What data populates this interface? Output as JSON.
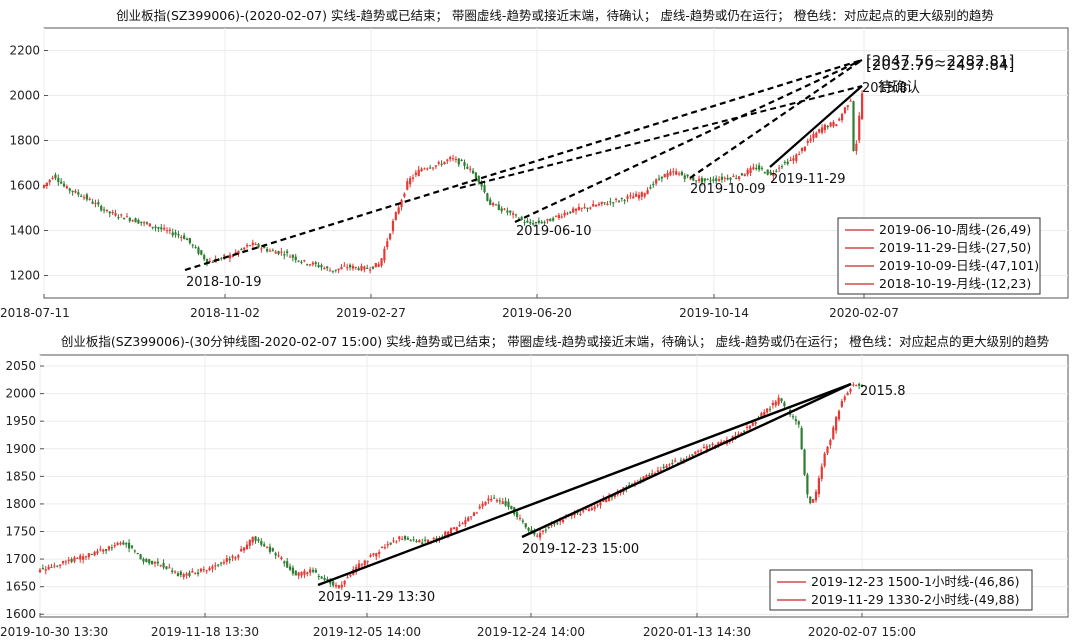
{
  "chart_data": [
    {
      "type": "candlestick",
      "title": "创业板指(SZ399006)-(2020-02-07)  实线-趋势或已结束；  带圈虚线-趋势或接近末端，待确认；  虚线-趋势或仍在运行；  橙色线：对应起点的更大级别的趋势",
      "ylim": [
        1100,
        2300
      ],
      "ytick_values": [
        1200,
        1400,
        1600,
        1800,
        2000,
        2200
      ],
      "ytick_labels": [
        "1200",
        "1400",
        "1600",
        "1800",
        "2000",
        "2200"
      ],
      "xtick_labels": [
        "2018-07-11",
        "2018-11-02",
        "2019-02-27",
        "2019-06-20",
        "2019-10-14",
        "2020-02-07"
      ],
      "price_path": [
        [
          0,
          1590
        ],
        [
          8,
          1620
        ],
        [
          13,
          1650
        ],
        [
          25,
          1590
        ],
        [
          45,
          1550
        ],
        [
          70,
          1480
        ],
        [
          95,
          1450
        ],
        [
          130,
          1400
        ],
        [
          150,
          1370
        ],
        [
          175,
          1260
        ],
        [
          200,
          1290
        ],
        [
          220,
          1340
        ],
        [
          240,
          1310
        ],
        [
          255,
          1300
        ],
        [
          275,
          1260
        ],
        [
          290,
          1245
        ],
        [
          305,
          1220
        ],
        [
          320,
          1240
        ],
        [
          340,
          1230
        ],
        [
          355,
          1250
        ],
        [
          370,
          1450
        ],
        [
          385,
          1620
        ],
        [
          400,
          1680
        ],
        [
          415,
          1690
        ],
        [
          430,
          1720
        ],
        [
          445,
          1690
        ],
        [
          460,
          1620
        ],
        [
          470,
          1520
        ],
        [
          490,
          1480
        ],
        [
          510,
          1430
        ],
        [
          530,
          1440
        ],
        [
          550,
          1480
        ],
        [
          570,
          1500
        ],
        [
          590,
          1520
        ],
        [
          610,
          1540
        ],
        [
          630,
          1560
        ],
        [
          650,
          1640
        ],
        [
          665,
          1660
        ],
        [
          680,
          1630
        ],
        [
          695,
          1620
        ],
        [
          710,
          1630
        ],
        [
          730,
          1640
        ],
        [
          750,
          1680
        ],
        [
          765,
          1650
        ],
        [
          775,
          1690
        ],
        [
          790,
          1720
        ],
        [
          805,
          1800
        ],
        [
          820,
          1860
        ],
        [
          835,
          1880
        ],
        [
          845,
          1960
        ],
        [
          850,
          1990
        ],
        [
          852,
          1760
        ],
        [
          856,
          1800
        ],
        [
          860,
          2010
        ]
      ],
      "trendlines": [
        {
          "from": [
            "2018-10-19",
            1190
          ],
          "to": [
            2150,
            0
          ],
          "style": "dashed",
          "color": "#000000"
        },
        {
          "from": [
            "2019-06-10",
            1410
          ],
          "to": [
            2150,
            0
          ],
          "style": "dashed",
          "color": "#000000"
        },
        {
          "from": [
            "2019-10-09",
            1600
          ],
          "to": [
            2150,
            0
          ],
          "style": "dashed",
          "color": "#000000"
        },
        {
          "from": [
            "2019-11-29",
            1645
          ],
          "to": [
            2032,
            0
          ],
          "style": "solid",
          "color": "#000000"
        }
      ],
      "annotations": [
        {
          "text": "2018-10-19",
          "value": 1190
        },
        {
          "text": "2019-06-10",
          "value": 1410
        },
        {
          "text": "2019-10-09",
          "value": 1600
        },
        {
          "text": "2019-11-29",
          "value": 1645
        },
        {
          "text": "[2047.56~2282.81]",
          "value": 2120
        },
        {
          "text": "[2032.79~2437.84]",
          "value": 2110
        },
        {
          "text": "2015.8",
          "value": 2015.8
        },
        {
          "text": "待确认",
          "value": 2015
        }
      ],
      "legend": {
        "position": "bottom-right",
        "entries": [
          {
            "name": "2019-06-10-周线-(26,49)",
            "color": "#c62828"
          },
          {
            "name": "2019-11-29-日线-(27,50)",
            "color": "#c62828"
          },
          {
            "name": "2019-10-09-日线-(47,101)",
            "color": "#c62828"
          },
          {
            "name": "2018-10-19-月线-(12,23)",
            "color": "#c62828"
          }
        ]
      },
      "up_color": "#e53935",
      "down_color": "#2e7d32"
    },
    {
      "type": "candlestick",
      "title": "创业板指(SZ399006)-(30分钟线图-2020-02-07 15:00)  实线-趋势或已结束；  带圈虚线-趋势或接近末端，待确认；  虚线-趋势或仍在运行；  橙色线：对应起点的更大级别的趋势",
      "ylim": [
        1595,
        2070
      ],
      "ytick_values": [
        1600,
        1650,
        1700,
        1750,
        1800,
        1850,
        1900,
        1950,
        2000,
        2050
      ],
      "ytick_labels": [
        "1600",
        "1650",
        "1700",
        "1750",
        "1800",
        "1850",
        "1900",
        "1950",
        "2000",
        "2050"
      ],
      "xtick_labels": [
        "2019-10-30 13:30",
        "2019-11-18 13:30",
        "2019-12-05 14:00",
        "2019-12-24 14:00",
        "2020-01-13 14:30",
        "2020-02-07 15:00"
      ],
      "price_path": [
        [
          0,
          1680
        ],
        [
          20,
          1690
        ],
        [
          40,
          1700
        ],
        [
          60,
          1710
        ],
        [
          75,
          1720
        ],
        [
          90,
          1730
        ],
        [
          110,
          1700
        ],
        [
          130,
          1690
        ],
        [
          150,
          1670
        ],
        [
          175,
          1680
        ],
        [
          195,
          1695
        ],
        [
          210,
          1710
        ],
        [
          225,
          1740
        ],
        [
          240,
          1720
        ],
        [
          255,
          1700
        ],
        [
          270,
          1670
        ],
        [
          285,
          1680
        ],
        [
          300,
          1660
        ],
        [
          315,
          1650
        ],
        [
          330,
          1680
        ],
        [
          345,
          1700
        ],
        [
          360,
          1720
        ],
        [
          380,
          1740
        ],
        [
          400,
          1730
        ],
        [
          420,
          1740
        ],
        [
          440,
          1760
        ],
        [
          455,
          1780
        ],
        [
          470,
          1810
        ],
        [
          490,
          1800
        ],
        [
          510,
          1760
        ],
        [
          520,
          1740
        ],
        [
          535,
          1760
        ],
        [
          555,
          1780
        ],
        [
          575,
          1790
        ],
        [
          595,
          1810
        ],
        [
          615,
          1830
        ],
        [
          635,
          1850
        ],
        [
          655,
          1870
        ],
        [
          675,
          1880
        ],
        [
          695,
          1900
        ],
        [
          715,
          1910
        ],
        [
          735,
          1930
        ],
        [
          755,
          1960
        ],
        [
          775,
          1990
        ],
        [
          795,
          1940
        ],
        [
          805,
          1800
        ],
        [
          812,
          1810
        ],
        [
          820,
          1880
        ],
        [
          830,
          1930
        ],
        [
          840,
          1990
        ],
        [
          850,
          2015
        ],
        [
          858,
          2015
        ]
      ],
      "trendlines": [
        {
          "from": [
            "2019-11-29 13:30",
            1648
          ],
          "to": [
            2025,
            0
          ],
          "style": "solid",
          "color": "#000000"
        },
        {
          "from": [
            "2019-12-23 15:00",
            1738
          ],
          "to": [
            2025,
            0
          ],
          "style": "solid",
          "color": "#000000"
        }
      ],
      "annotations": [
        {
          "text": "2019-11-29 13:30",
          "value": 1648
        },
        {
          "text": "2019-12-23 15:00",
          "value": 1738
        },
        {
          "text": "2015.8",
          "value": 2015.8
        }
      ],
      "legend": {
        "position": "bottom-right",
        "entries": [
          {
            "name": "2019-12-23 1500-1小时线-(46,86)",
            "color": "#c62828"
          },
          {
            "name": "2019-11-29 1330-2小时线-(49,88)",
            "color": "#c62828"
          }
        ]
      },
      "up_color": "#e53935",
      "down_color": "#2e7d32"
    }
  ]
}
